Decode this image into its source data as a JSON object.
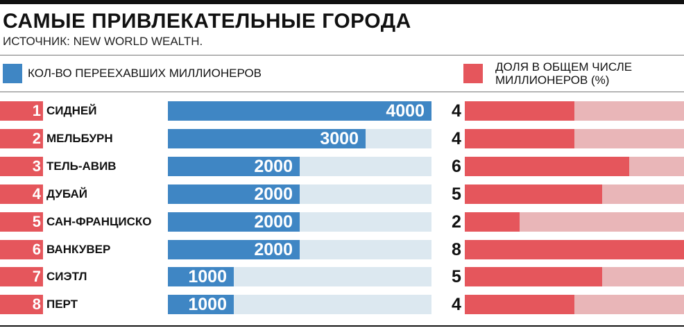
{
  "header": {
    "title": "САМЫЕ ПРИВЛЕКАТЕЛЬНЫЕ ГОРОДА",
    "source": "ИСТОЧНИК: NEW WORLD WEALTH."
  },
  "legend": {
    "left_label": "КОЛ-ВО ПЕРЕЕХАВШИХ МИЛЛИОНЕРОВ",
    "right_label_line1": "ДОЛЯ В ОБЩЕМ ЧИСЛЕ",
    "right_label_line2": "МИЛЛИОНЕРОВ (%)"
  },
  "colors": {
    "blue": "#3f86c4",
    "blue_track": "#dce8f0",
    "red": "#e5565c",
    "red_track": "#e9b6b8",
    "rank": "#e5565c"
  },
  "chart_data": {
    "type": "bar",
    "categories": [
      "СИДНЕЙ",
      "МЕЛЬБУРН",
      "ТЕЛЬ-АВИВ",
      "ДУБАЙ",
      "САН-ФРАНЦИСКО",
      "ВАНКУВЕР",
      "СИЭТЛ",
      "ПЕРТ"
    ],
    "ranks": [
      "1",
      "2",
      "3",
      "4",
      "5",
      "6",
      "7",
      "8"
    ],
    "series": [
      {
        "name": "КОЛ-ВО ПЕРЕЕХАВШИХ МИЛЛИОНЕРОВ",
        "values": [
          4000,
          3000,
          2000,
          2000,
          2000,
          2000,
          1000,
          1000
        ],
        "max": 4000
      },
      {
        "name": "ДОЛЯ В ОБЩЕМ ЧИСЛЕ МИЛЛИОНЕРОВ (%)",
        "values": [
          4,
          4,
          6,
          5,
          2,
          8,
          5,
          4
        ],
        "max": 8
      }
    ]
  }
}
